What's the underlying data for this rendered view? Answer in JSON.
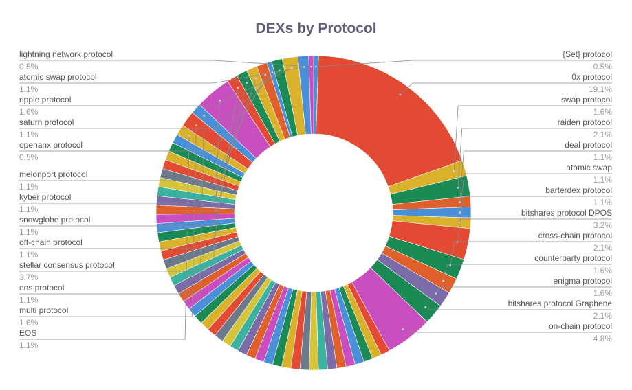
{
  "chart_data": {
    "type": "pie",
    "title": "DEXs by Protocol",
    "donut": true,
    "colors": {
      "text_label": "#555555",
      "text_value": "#9a9a9a",
      "leader": "#8a8a8a"
    },
    "palette": [
      "#e34a33",
      "#dab12b",
      "#1b8a55",
      "#4a90d9",
      "#c94fc1",
      "#e0602b",
      "#7b6ba8",
      "#3bb2a0",
      "#d6c43a",
      "#6a7a8c"
    ],
    "slices": [
      {
        "label": "{Set} protocol",
        "value": 0.5,
        "value_text": "0.5%",
        "color": "#4a90d9",
        "side": "right"
      },
      {
        "label": "0x protocol",
        "value": 19.1,
        "value_text": "19.1%",
        "color": "#e34a33",
        "side": "right"
      },
      {
        "label": "swap protocol",
        "value": 1.6,
        "value_text": "1.6%",
        "color": "#dab12b",
        "side": "right"
      },
      {
        "label": "raiden protocol",
        "value": 2.1,
        "value_text": "2.1%",
        "color": "#1b8a55",
        "side": "right"
      },
      {
        "label": "deal protocol",
        "value": 1.1,
        "value_text": "1.1%",
        "color": "#e0602b",
        "side": "right"
      },
      {
        "label": "atomic swap",
        "value": 1.1,
        "value_text": "1.1%",
        "color": "#4a90d9",
        "side": "right"
      },
      {
        "label": "barterdex protocol",
        "value": 1.1,
        "value_text": "1.1%",
        "color": "#dab12b",
        "side": "right"
      },
      {
        "label": "bitshares protocol DPOS",
        "value": 3.2,
        "value_text": "3.2%",
        "color": "#e34a33",
        "side": "right"
      },
      {
        "label": "cross-chain protocol",
        "value": 2.1,
        "value_text": "2.1%",
        "color": "#1b8a55",
        "side": "right"
      },
      {
        "label": "counterparty protocol",
        "value": 1.6,
        "value_text": "1.6%",
        "color": "#e0602b",
        "side": "right"
      },
      {
        "label": "enigma protocol",
        "value": 1.6,
        "value_text": "1.6%",
        "color": "#7b6ba8",
        "side": "right"
      },
      {
        "label": "bitshares protocol Graphene",
        "value": 2.1,
        "value_text": "2.1%",
        "color": "#1b8a55",
        "side": "right"
      },
      {
        "label": "on-chain protocol",
        "value": 4.8,
        "value_text": "4.8%",
        "color": "#c94fc1",
        "side": "right"
      },
      {
        "label": "EOS",
        "value": 1.1,
        "value_text": "1.1%",
        "color": "#dab12b",
        "side": "left"
      },
      {
        "label": "multi protocol",
        "value": 1.6,
        "value_text": "1.6%",
        "color": "#e34a33",
        "side": "left"
      },
      {
        "label": "eos protocol",
        "value": 1.1,
        "value_text": "1.1%",
        "color": "#4a90d9",
        "side": "left"
      },
      {
        "label": "stellar consensus protocol",
        "value": 3.7,
        "value_text": "3.7%",
        "color": "#c94fc1",
        "side": "left"
      },
      {
        "label": "off-chain protocol",
        "value": 1.1,
        "value_text": "1.1%",
        "color": "#e34a33",
        "side": "left"
      },
      {
        "label": "snowglobe protocol",
        "value": 1.1,
        "value_text": "1.1%",
        "color": "#1b8a55",
        "side": "left"
      },
      {
        "label": "kyber protocol",
        "value": 1.1,
        "value_text": "1.1%",
        "color": "#dab12b",
        "side": "left"
      },
      {
        "label": "melonport protocol",
        "value": 1.1,
        "value_text": "1.1%",
        "color": "#e0602b",
        "side": "left"
      },
      {
        "label": "openanx protocol",
        "value": 0.5,
        "value_text": "0.5%",
        "color": "#4a90d9",
        "side": "left"
      },
      {
        "label": "saturn protocol",
        "value": 1.1,
        "value_text": "1.1%",
        "color": "#1b8a55",
        "side": "left"
      },
      {
        "label": "ripple protocol",
        "value": 1.6,
        "value_text": "1.6%",
        "color": "#dab12b",
        "side": "left"
      },
      {
        "label": "atomic swap protocol",
        "value": 1.1,
        "value_text": "1.1%",
        "color": "#4a90d9",
        "side": "left"
      },
      {
        "label": "lightning network protocol",
        "value": 0.5,
        "value_text": "0.5%",
        "color": "#c94fc1",
        "side": "left"
      }
    ]
  }
}
